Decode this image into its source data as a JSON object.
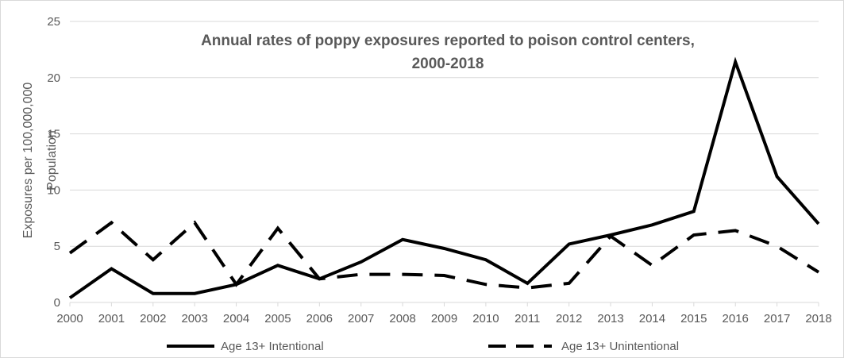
{
  "chart_data": {
    "type": "line",
    "title_lines": [
      "Annual rates of poppy exposures reported to poison control centers,",
      "2000-2018"
    ],
    "ylabel_lines": [
      "Exposures per 100,000,000",
      "Population"
    ],
    "xlabel": "",
    "categories": [
      "2000",
      "2001",
      "2002",
      "2003",
      "2004",
      "2005",
      "2006",
      "2007",
      "2008",
      "2009",
      "2010",
      "2011",
      "2012",
      "2013",
      "2014",
      "2015",
      "2016",
      "2017",
      "2018"
    ],
    "ylim": [
      0,
      25
    ],
    "yticks": [
      "0",
      "5",
      "10",
      "15",
      "20",
      "25"
    ],
    "grid": true,
    "legend_position": "bottom",
    "series": [
      {
        "name": "Age 13+ Intentional",
        "style": "solid",
        "color": "#000000",
        "values": [
          0.4,
          3.0,
          0.8,
          0.8,
          1.6,
          3.3,
          2.1,
          3.6,
          5.6,
          4.8,
          3.8,
          1.7,
          5.2,
          6.0,
          6.9,
          8.1,
          21.4,
          11.2,
          7.0
        ]
      },
      {
        "name": "Age 13+ Unintentional",
        "style": "dashed",
        "color": "#000000",
        "values": [
          4.4,
          7.1,
          3.8,
          7.1,
          1.6,
          6.6,
          2.1,
          2.5,
          2.5,
          2.4,
          1.6,
          1.3,
          1.7,
          5.9,
          3.3,
          6.0,
          6.4,
          5.0,
          2.7
        ]
      }
    ]
  }
}
